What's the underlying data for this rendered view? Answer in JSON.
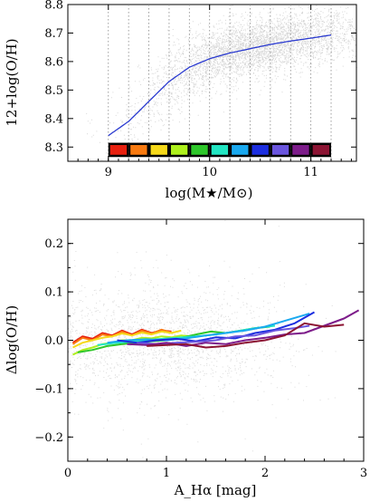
{
  "chart_data": [
    {
      "type": "scatter",
      "xlabel": "log(M★/M⊙)",
      "ylabel": "12+log(O/H)",
      "xlim": [
        8.6,
        11.45
      ],
      "ylim": [
        8.25,
        8.8
      ],
      "xticks": [
        9,
        10,
        11
      ],
      "xtick_labels": [
        "9",
        "10",
        "11"
      ],
      "yticks": [
        8.3,
        8.4,
        8.5,
        8.6,
        8.7,
        8.8
      ],
      "ytick_labels": [
        "8.3",
        "8.4",
        "8.5",
        "8.6",
        "8.7",
        "8.8"
      ],
      "grid": "vertical dotted lines at bin edges",
      "bin_edges": [
        9.0,
        9.2,
        9.4,
        9.6,
        9.8,
        10.0,
        10.2,
        10.4,
        10.6,
        10.8,
        11.0,
        11.2
      ],
      "bin_colors": [
        "#e8200f",
        "#f97a10",
        "#f6d91a",
        "#aef01c",
        "#2ec72a",
        "#22e6c3",
        "#1aa9ef",
        "#1c2ee0",
        "#6a55de",
        "#7d1c8a",
        "#8c1433"
      ],
      "series": [
        {
          "kind": "fit",
          "color": "#2a3ad0",
          "x": [
            9.0,
            9.2,
            9.4,
            9.6,
            9.8,
            10.0,
            10.2,
            10.4,
            10.6,
            10.8,
            11.0,
            11.2
          ],
          "y": [
            8.34,
            8.39,
            8.46,
            8.53,
            8.58,
            8.61,
            8.63,
            8.645,
            8.66,
            8.672,
            8.682,
            8.693
          ]
        }
      ]
    },
    {
      "type": "line",
      "xlabel": "A_Hα [mag]",
      "ylabel": "Δlog(O/H)",
      "xlim": [
        0,
        3
      ],
      "ylim": [
        -0.25,
        0.25
      ],
      "xticks": [
        0,
        1,
        2,
        3
      ],
      "xtick_labels": [
        "0",
        "1",
        "2",
        "3"
      ],
      "yticks": [
        -0.2,
        -0.1,
        0.0,
        0.1,
        0.2
      ],
      "ytick_labels": [
        "−0.2",
        "−0.1",
        "0.0",
        "0.1",
        "0.2"
      ],
      "series": [
        {
          "color": "#e8200f",
          "x": [
            0.05,
            0.15,
            0.25,
            0.35,
            0.45,
            0.55,
            0.65,
            0.75,
            0.85,
            0.95,
            1.05
          ],
          "y": [
            -0.005,
            0.008,
            0.003,
            0.015,
            0.01,
            0.02,
            0.012,
            0.022,
            0.015,
            0.02,
            0.018
          ]
        },
        {
          "color": "#f97a10",
          "x": [
            0.05,
            0.15,
            0.25,
            0.35,
            0.45,
            0.55,
            0.65,
            0.75,
            0.85,
            0.95,
            1.05
          ],
          "y": [
            -0.008,
            0.005,
            0.0,
            0.012,
            0.008,
            0.018,
            0.01,
            0.02,
            0.014,
            0.022,
            0.016
          ]
        },
        {
          "color": "#f6d91a",
          "x": [
            0.05,
            0.15,
            0.25,
            0.35,
            0.45,
            0.55,
            0.65,
            0.75,
            0.85,
            0.95,
            1.05,
            1.15
          ],
          "y": [
            -0.015,
            -0.005,
            0.0,
            0.005,
            0.008,
            0.014,
            0.01,
            0.016,
            0.012,
            0.018,
            0.015,
            0.02
          ]
        },
        {
          "color": "#aef01c",
          "x": [
            0.05,
            0.15,
            0.25,
            0.35,
            0.45,
            0.55,
            0.65,
            0.75,
            0.85,
            0.95,
            1.05,
            1.15,
            1.25
          ],
          "y": [
            -0.03,
            -0.02,
            -0.015,
            -0.008,
            -0.005,
            0.0,
            0.0,
            0.005,
            0.004,
            0.008,
            0.006,
            0.01,
            0.008
          ]
        },
        {
          "color": "#2ec72a",
          "x": [
            0.1,
            0.25,
            0.4,
            0.55,
            0.7,
            0.85,
            1.0,
            1.15,
            1.3,
            1.45,
            1.6,
            1.75,
            1.9,
            2.05
          ],
          "y": [
            -0.025,
            -0.02,
            -0.012,
            -0.008,
            -0.005,
            -0.002,
            0.0,
            0.005,
            0.012,
            0.018,
            0.015,
            0.02,
            0.025,
            0.028
          ]
        },
        {
          "color": "#22e6c3",
          "x": [
            0.3,
            0.5,
            0.7,
            0.9,
            1.1,
            1.3,
            1.5,
            1.7,
            1.9,
            2.1
          ],
          "y": [
            -0.01,
            -0.005,
            -0.002,
            0.002,
            0.005,
            0.008,
            0.012,
            0.018,
            0.025,
            0.03
          ]
        },
        {
          "color": "#1aa9ef",
          "x": [
            0.4,
            0.6,
            0.8,
            1.0,
            1.2,
            1.4,
            1.6,
            1.8,
            2.0,
            2.2,
            2.45
          ],
          "y": [
            -0.005,
            0.0,
            0.002,
            0.0,
            0.004,
            0.01,
            0.015,
            0.02,
            0.028,
            0.04,
            0.055
          ]
        },
        {
          "color": "#1c2ee0",
          "x": [
            0.5,
            0.7,
            0.9,
            1.1,
            1.3,
            1.5,
            1.7,
            1.9,
            2.1,
            2.3,
            2.5
          ],
          "y": [
            0.0,
            -0.005,
            0.0,
            0.003,
            -0.002,
            0.006,
            0.004,
            0.015,
            0.022,
            0.035,
            0.058
          ]
        },
        {
          "color": "#6a55de",
          "x": [
            0.7,
            0.9,
            1.1,
            1.3,
            1.5,
            1.7,
            1.9,
            2.1,
            2.3,
            2.45
          ],
          "y": [
            -0.005,
            -0.008,
            -0.005,
            -0.003,
            0.0,
            0.008,
            0.01,
            0.02,
            0.025,
            0.03
          ]
        },
        {
          "color": "#7d1c8a",
          "x": [
            0.6,
            0.8,
            1.0,
            1.2,
            1.4,
            1.6,
            1.8,
            2.0,
            2.2,
            2.4,
            2.6,
            2.8,
            2.95
          ],
          "y": [
            -0.008,
            -0.01,
            -0.005,
            -0.012,
            -0.005,
            -0.008,
            0.0,
            0.005,
            0.012,
            0.015,
            0.03,
            0.045,
            0.062
          ]
        },
        {
          "color": "#8c1433",
          "x": [
            0.8,
            1.0,
            1.2,
            1.4,
            1.6,
            1.8,
            2.0,
            2.2,
            2.4,
            2.6,
            2.8
          ],
          "y": [
            -0.012,
            -0.01,
            -0.008,
            -0.015,
            -0.012,
            -0.005,
            0.0,
            0.01,
            0.035,
            0.028,
            0.032
          ]
        }
      ]
    }
  ]
}
